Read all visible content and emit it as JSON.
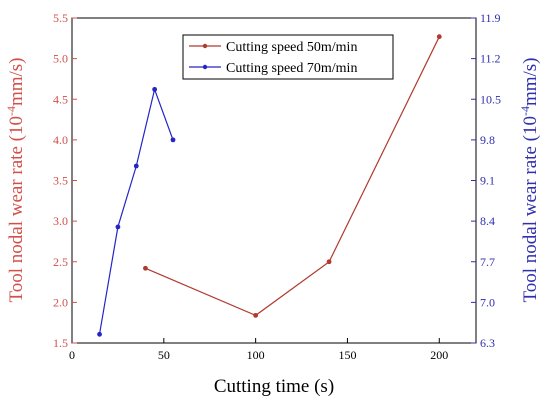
{
  "chart_data": {
    "type": "line",
    "xlabel": "Cutting time (s)",
    "ylabel_left": {
      "prefix": "Tool nodal wear rate (10",
      "exp": "-4",
      "suffix": "mm/s)"
    },
    "ylabel_right": {
      "prefix": "Tool nodal wear rate (10",
      "exp": "-4",
      "suffix": "mm/s)"
    },
    "xlim": [
      0,
      220
    ],
    "ylim_left": [
      1.5,
      5.5
    ],
    "ylim_right": [
      6.3,
      11.9
    ],
    "x_ticks": [
      0,
      50,
      100,
      150,
      200
    ],
    "y_ticks_left": [
      1.5,
      2.0,
      2.5,
      3.0,
      3.5,
      4.0,
      4.5,
      5.0,
      5.5
    ],
    "y_ticks_right": [
      6.3,
      7.0,
      7.7,
      8.4,
      9.1,
      9.8,
      10.5,
      11.2,
      11.9
    ],
    "grid": false,
    "legend_position": "top-center",
    "series": [
      {
        "name": "Cutting speed 50m/min",
        "axis": "left",
        "color": "#b03a2e",
        "x": [
          40,
          100,
          140,
          200
        ],
        "y": [
          2.42,
          1.84,
          2.5,
          5.27
        ]
      },
      {
        "name": "Cutting speed 70m/min",
        "axis": "right",
        "color": "#2424c8",
        "x": [
          15,
          25,
          35,
          45,
          55
        ],
        "y": [
          6.45,
          8.3,
          9.35,
          10.67,
          9.8
        ]
      }
    ]
  },
  "colors": {
    "left_axis": "#d2504a",
    "right_axis": "#2f2fb0",
    "frame": "#000000"
  }
}
